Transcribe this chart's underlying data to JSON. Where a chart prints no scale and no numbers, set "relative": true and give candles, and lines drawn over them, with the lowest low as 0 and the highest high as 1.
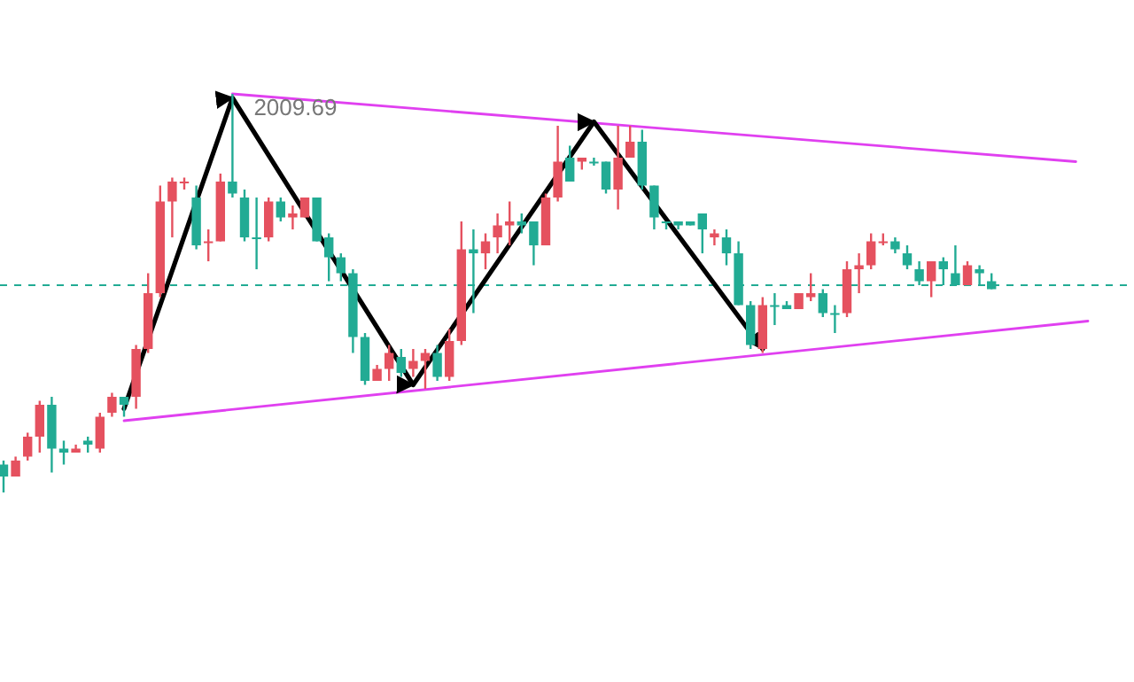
{
  "chart_data": {
    "type": "candlestick",
    "relative": true,
    "categories": [
      null,
      null,
      null,
      null,
      null,
      null,
      null,
      null,
      null,
      null,
      null,
      null,
      null,
      null,
      null,
      null,
      null,
      null,
      null,
      null,
      null,
      null,
      null,
      null,
      null,
      null,
      null,
      null,
      null,
      null,
      null,
      null,
      null,
      null,
      null,
      null,
      null,
      null,
      null,
      null,
      null,
      null,
      null,
      null,
      null,
      null,
      null,
      null,
      null,
      null,
      null,
      null,
      null,
      null,
      null,
      null,
      null,
      null,
      null,
      null,
      null,
      null,
      null,
      null,
      null,
      null,
      null,
      null,
      null,
      null,
      null,
      null,
      null,
      null,
      null,
      null,
      null,
      null,
      null,
      null,
      null,
      null,
      null,
      null,
      null,
      null,
      null,
      null,
      null,
      null,
      null
    ],
    "ohlc": [
      [
        0.07,
        0.08,
        0,
        0.04
      ],
      [
        0.04,
        0.09,
        0.04,
        0.08
      ],
      [
        0.09,
        0.15,
        0.08,
        0.14
      ],
      [
        0.14,
        0.23,
        0.1,
        0.22
      ],
      [
        0.22,
        0.24,
        0.05,
        0.11
      ],
      [
        0.11,
        0.13,
        0.07,
        0.1
      ],
      [
        0.1,
        0.12,
        0.1,
        0.11
      ],
      [
        0.13,
        0.14,
        0.1,
        0.12
      ],
      [
        0.11,
        0.2,
        0.1,
        0.19
      ],
      [
        0.2,
        0.25,
        0.19,
        0.24
      ],
      [
        0.24,
        0.24,
        0.19,
        0.22
      ],
      [
        0.24,
        0.37,
        0.21,
        0.36
      ],
      [
        0.36,
        0.55,
        0.35,
        0.5
      ],
      [
        0.5,
        0.77,
        0.49,
        0.73
      ],
      [
        0.73,
        0.79,
        0.64,
        0.78
      ],
      [
        0.78,
        0.79,
        0.76,
        0.78
      ],
      [
        0.74,
        0.77,
        0.61,
        0.62
      ],
      [
        0.63,
        0.66,
        0.58,
        0.63
      ],
      [
        0.63,
        0.8,
        0.63,
        0.78
      ],
      [
        0.78,
        1,
        0.74,
        0.75
      ],
      [
        0.74,
        0.76,
        0.63,
        0.64
      ],
      [
        0.64,
        0.74,
        0.56,
        0.64
      ],
      [
        0.64,
        0.74,
        0.63,
        0.73
      ],
      [
        0.73,
        0.74,
        0.68,
        0.69
      ],
      [
        0.69,
        0.72,
        0.66,
        0.7
      ],
      [
        0.69,
        0.74,
        0.69,
        0.74
      ],
      [
        0.74,
        0.74,
        0.63,
        0.63
      ],
      [
        0.64,
        0.65,
        0.53,
        0.59
      ],
      [
        0.59,
        0.6,
        0.53,
        0.55
      ],
      [
        0.55,
        0.56,
        0.35,
        0.39
      ],
      [
        0.39,
        0.4,
        0.27,
        0.28
      ],
      [
        0.28,
        0.32,
        0.28,
        0.31
      ],
      [
        0.31,
        0.37,
        0.28,
        0.35
      ],
      [
        0.34,
        0.36,
        0.29,
        0.3
      ],
      [
        0.31,
        0.36,
        0.29,
        0.33
      ],
      [
        0.33,
        0.36,
        0.26,
        0.35
      ],
      [
        0.35,
        0.37,
        0.28,
        0.29
      ],
      [
        0.29,
        0.41,
        0.28,
        0.38
      ],
      [
        0.38,
        0.68,
        0.37,
        0.61
      ],
      [
        0.61,
        0.66,
        0.45,
        0.6
      ],
      [
        0.6,
        0.65,
        0.56,
        0.63
      ],
      [
        0.64,
        0.7,
        0.6,
        0.67
      ],
      [
        0.67,
        0.73,
        0.62,
        0.68
      ],
      [
        0.68,
        0.7,
        0.65,
        0.67
      ],
      [
        0.68,
        0.68,
        0.57,
        0.62
      ],
      [
        0.62,
        0.75,
        0.62,
        0.74
      ],
      [
        0.74,
        0.92,
        0.73,
        0.83
      ],
      [
        0.84,
        0.87,
        0.78,
        0.78
      ],
      [
        0.83,
        0.84,
        0.81,
        0.84
      ],
      [
        0.83,
        0.84,
        0.82,
        0.83
      ],
      [
        0.83,
        0.83,
        0.75,
        0.76
      ],
      [
        0.76,
        0.92,
        0.71,
        0.84
      ],
      [
        0.84,
        0.92,
        0.84,
        0.88
      ],
      [
        0.88,
        0.91,
        0.76,
        0.77
      ],
      [
        0.77,
        0.77,
        0.66,
        0.69
      ],
      [
        0.68,
        0.68,
        0.66,
        0.68
      ],
      [
        0.68,
        0.68,
        0.66,
        0.67
      ],
      [
        0.68,
        0.68,
        0.67,
        0.67
      ],
      [
        0.7,
        0.7,
        0.6,
        0.66
      ],
      [
        0.64,
        0.66,
        0.62,
        0.65
      ],
      [
        0.64,
        0.66,
        0.57,
        0.6
      ],
      [
        0.6,
        0.63,
        0.47,
        0.47
      ],
      [
        0.47,
        0.48,
        0.36,
        0.37
      ],
      [
        0.36,
        0.49,
        0.35,
        0.47
      ],
      [
        0.47,
        0.5,
        0.42,
        0.47
      ],
      [
        0.47,
        0.48,
        0.46,
        0.46
      ],
      [
        0.46,
        0.5,
        0.46,
        0.5
      ],
      [
        0.49,
        0.55,
        0.48,
        0.5
      ],
      [
        0.5,
        0.51,
        0.44,
        0.45
      ],
      [
        0.45,
        0.47,
        0.4,
        0.45
      ],
      [
        0.45,
        0.58,
        0.44,
        0.56
      ],
      [
        0.56,
        0.6,
        0.5,
        0.57
      ],
      [
        0.57,
        0.65,
        0.56,
        0.63
      ],
      [
        0.63,
        0.65,
        0.62,
        0.63
      ],
      [
        0.63,
        0.64,
        0.6,
        0.61
      ],
      [
        0.6,
        0.62,
        0.56,
        0.57
      ],
      [
        0.56,
        0.58,
        0.52,
        0.53
      ],
      [
        0.53,
        0.58,
        0.49,
        0.58
      ],
      [
        0.58,
        0.59,
        0.52,
        0.56
      ],
      [
        0.55,
        0.62,
        0.52,
        0.52
      ],
      [
        0.52,
        0.58,
        0.52,
        0.57
      ],
      [
        0.56,
        0.57,
        0.52,
        0.55
      ],
      [
        0.53,
        0.55,
        0.51,
        0.51
      ],
      null,
      null,
      null,
      null,
      null,
      null,
      null,
      null
    ],
    "colors": [
      "#22ab94",
      "#e5515f",
      "#e5515f",
      "#e5515f",
      "#22ab94",
      "#22ab94",
      "#e5515f",
      "#22ab94",
      "#e5515f",
      "#e5515f",
      "#22ab94",
      "#e5515f",
      "#e5515f",
      "#e5515f",
      "#e5515f",
      "#e5515f",
      "#22ab94",
      "#e5515f",
      "#e5515f",
      "#22ab94",
      "#22ab94",
      "#22ab94",
      "#e5515f",
      "#22ab94",
      "#e5515f",
      "#e5515f",
      "#22ab94",
      "#22ab94",
      "#22ab94",
      "#22ab94",
      "#22ab94",
      "#e5515f",
      "#e5515f",
      "#22ab94",
      "#e5515f",
      "#e5515f",
      "#22ab94",
      "#e5515f",
      "#e5515f",
      "#22ab94",
      "#e5515f",
      "#e5515f",
      "#e5515f",
      "#22ab94",
      "#22ab94",
      "#e5515f",
      "#e5515f",
      "#22ab94",
      "#e5515f",
      "#22ab94",
      "#22ab94",
      "#e5515f",
      "#e5515f",
      "#22ab94",
      "#22ab94",
      "#22ab94",
      "#22ab94",
      "#22ab94",
      "#22ab94",
      "#e5515f",
      "#22ab94",
      "#22ab94",
      "#22ab94",
      "#e5515f",
      "#22ab94",
      "#22ab94",
      "#e5515f",
      "#e5515f",
      "#22ab94",
      "#22ab94",
      "#e5515f",
      "#e5515f",
      "#e5515f",
      "#e5515f",
      "#22ab94",
      "#22ab94",
      "#22ab94",
      "#e5515f",
      "#22ab94",
      "#22ab94",
      "#e5515f",
      "#22ab94",
      "#22ab94",
      null,
      null,
      null,
      null,
      null,
      null,
      null,
      null
    ],
    "series": [
      {
        "type": "line",
        "color": "#e040f0",
        "values": [
          null,
          null,
          null,
          null,
          null,
          null,
          null,
          null,
          null,
          null,
          null,
          null,
          null,
          null,
          null,
          null,
          null,
          null,
          null,
          1,
          null,
          null,
          null,
          null,
          null,
          null,
          null,
          null,
          null,
          null,
          null,
          null,
          null,
          null,
          null,
          null,
          null,
          null,
          null,
          null,
          null,
          null,
          null,
          null,
          null,
          null,
          null,
          null,
          null,
          null,
          null,
          null,
          null,
          null,
          null,
          null,
          null,
          null,
          null,
          null,
          null,
          null,
          null,
          null,
          null,
          null,
          null,
          null,
          null,
          null,
          null,
          null,
          null,
          null,
          null,
          null,
          null,
          null,
          null,
          null,
          null,
          null,
          null,
          null,
          null,
          null,
          null,
          null,
          null,
          0.83,
          null
        ]
      },
      {
        "type": "line",
        "color": "#e040f0",
        "values": [
          null,
          null,
          null,
          null,
          null,
          null,
          null,
          null,
          null,
          null,
          0.18,
          null,
          null,
          null,
          null,
          null,
          null,
          null,
          null,
          null,
          null,
          null,
          null,
          null,
          null,
          null,
          null,
          null,
          null,
          null,
          null,
          null,
          null,
          null,
          null,
          null,
          null,
          null,
          null,
          null,
          null,
          null,
          null,
          null,
          null,
          null,
          null,
          null,
          null,
          null,
          null,
          null,
          null,
          null,
          null,
          null,
          null,
          null,
          null,
          null,
          null,
          null,
          null,
          null,
          null,
          null,
          null,
          null,
          null,
          null,
          null,
          null,
          null,
          null,
          null,
          null,
          null,
          null,
          null,
          null,
          null,
          null,
          null,
          null,
          null,
          null,
          null,
          null,
          null,
          null,
          0.43
        ]
      },
      {
        "type": "line",
        "color": "#000000",
        "values": [
          null,
          null,
          null,
          null,
          null,
          null,
          null,
          null,
          null,
          null,
          0.21,
          null,
          null,
          null,
          null,
          null,
          null,
          null,
          null,
          0.99,
          null,
          null,
          null,
          null,
          null,
          null,
          null,
          null,
          null,
          null,
          null,
          null,
          null,
          null,
          0.27,
          null,
          null,
          null,
          null,
          null,
          null,
          null,
          null,
          null,
          null,
          null,
          null,
          null,
          null,
          0.93,
          null,
          null,
          null,
          null,
          null,
          null,
          null,
          null,
          null,
          null,
          null,
          null,
          null,
          0.36,
          null,
          null,
          null,
          null,
          null,
          null,
          null,
          null,
          null,
          null,
          null,
          null,
          null,
          null,
          null,
          null,
          null,
          null,
          null,
          null,
          null,
          null,
          null,
          null,
          null,
          null,
          null
        ]
      }
    ],
    "annotations": [
      "2009.69"
    ],
    "ref_lines": [
      {
        "axis": "y",
        "value": 0.52,
        "color": "#22ab94",
        "line_style": "dashed"
      }
    ]
  }
}
